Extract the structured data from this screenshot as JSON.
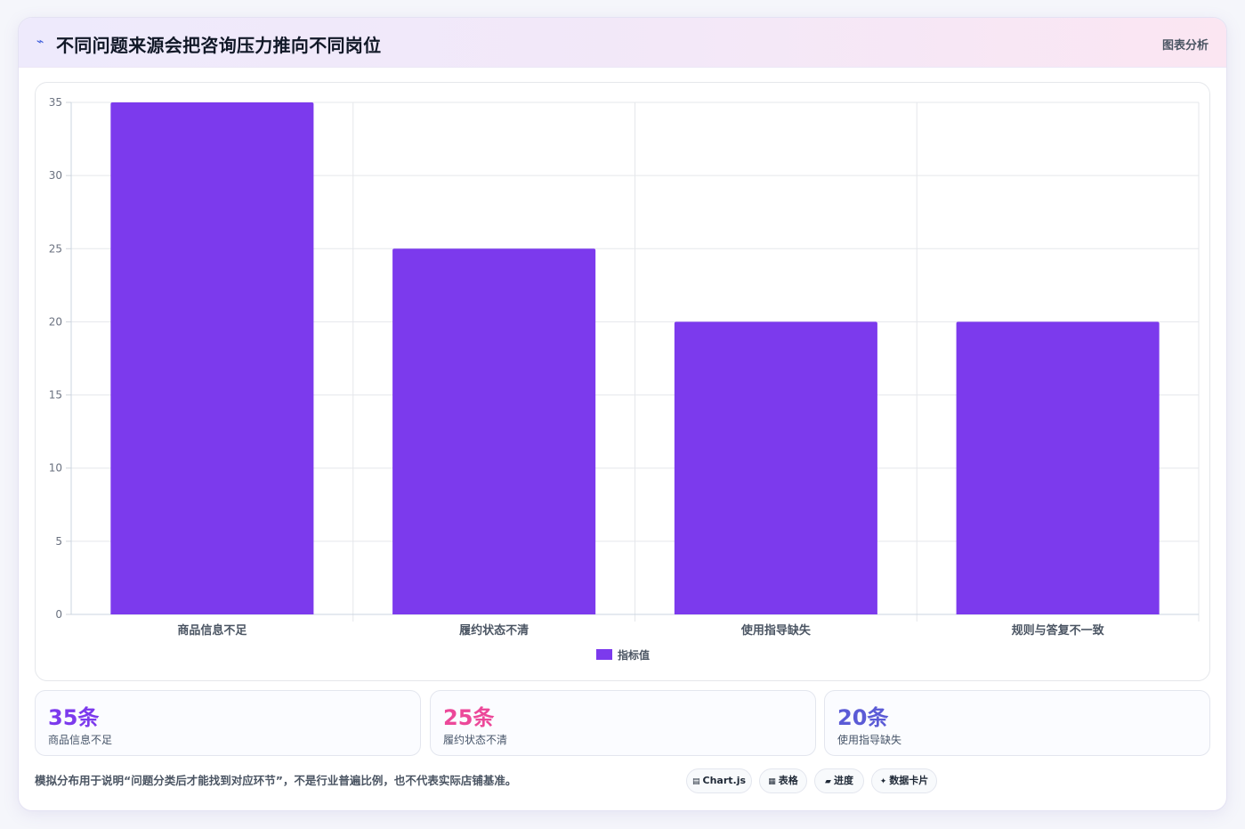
{
  "header": {
    "icon": "chart-line-icon",
    "title": "不同问题来源会把咨询压力推向不同岗位",
    "tag": "图表分析"
  },
  "chart_data": {
    "type": "bar",
    "categories": [
      "商品信息不足",
      "履约状态不清",
      "使用指导缺失",
      "规则与答复不一致"
    ],
    "series": [
      {
        "name": "指标值",
        "values": [
          35,
          25,
          20,
          20
        ],
        "color": "#7c3aed"
      }
    ],
    "yticks": [
      0,
      5,
      10,
      15,
      20,
      25,
      30,
      35
    ],
    "ylim": [
      0,
      35
    ],
    "grid": true,
    "legend": "bottom",
    "title": "",
    "xlabel": "",
    "ylabel": ""
  },
  "stats": [
    {
      "value": "35条",
      "label": "商品信息不足",
      "color": "#7c3aed"
    },
    {
      "value": "25条",
      "label": "履约状态不清",
      "color": "#ec4899"
    },
    {
      "value": "20条",
      "label": "使用指导缺失",
      "color": "#5b5bd6"
    }
  ],
  "footnote": "模拟分布用于说明“问题分类后才能找到对应环节”，不是行业普遍比例，也不代表实际店铺基准。",
  "badges": [
    {
      "icon": "▤",
      "label": "Chart.js"
    },
    {
      "icon": "▦",
      "label": "表格"
    },
    {
      "icon": "▰",
      "label": "进度"
    },
    {
      "icon": "✦",
      "label": "数据卡片"
    }
  ]
}
